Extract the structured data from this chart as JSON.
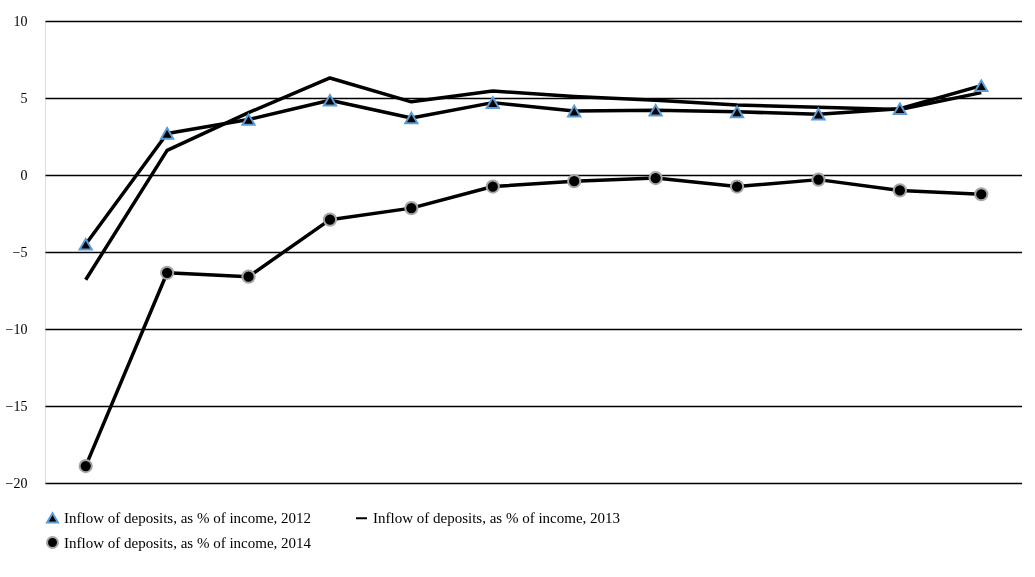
{
  "chart_data": {
    "type": "line",
    "categories": [
      null,
      null,
      null,
      null,
      null,
      null,
      null,
      null,
      null,
      null,
      null,
      null
    ],
    "series": [
      {
        "name": "Inflow of deposits, as % of income, 2012",
        "color": "#000000",
        "marker": "triangle",
        "values": [
          -4.5,
          2.7,
          3.6,
          4.85,
          3.7,
          4.7,
          4.15,
          4.2,
          4.1,
          3.95,
          4.3,
          5.8
        ]
      },
      {
        "name": "Inflow of deposits, as % of income, 2013",
        "color": "#000000",
        "marker": "none",
        "values": [
          -6.8,
          1.6,
          4.05,
          6.3,
          4.75,
          5.45,
          5.1,
          4.85,
          4.55,
          4.4,
          4.25,
          5.35
        ]
      },
      {
        "name": "Inflow of deposits, as % of income, 2014",
        "color": "#000000",
        "marker": "circle",
        "values": [
          -18.9,
          -6.35,
          -6.6,
          -2.9,
          -2.15,
          -0.75,
          -0.4,
          -0.2,
          -0.75,
          -0.3,
          -1.0,
          -1.25
        ]
      }
    ],
    "ylim": [
      -20,
      10
    ],
    "yticks": [
      -20,
      -15,
      -10,
      -5,
      0,
      5,
      10
    ],
    "grid": "y",
    "legend": "bottom",
    "line_style": "solid"
  }
}
